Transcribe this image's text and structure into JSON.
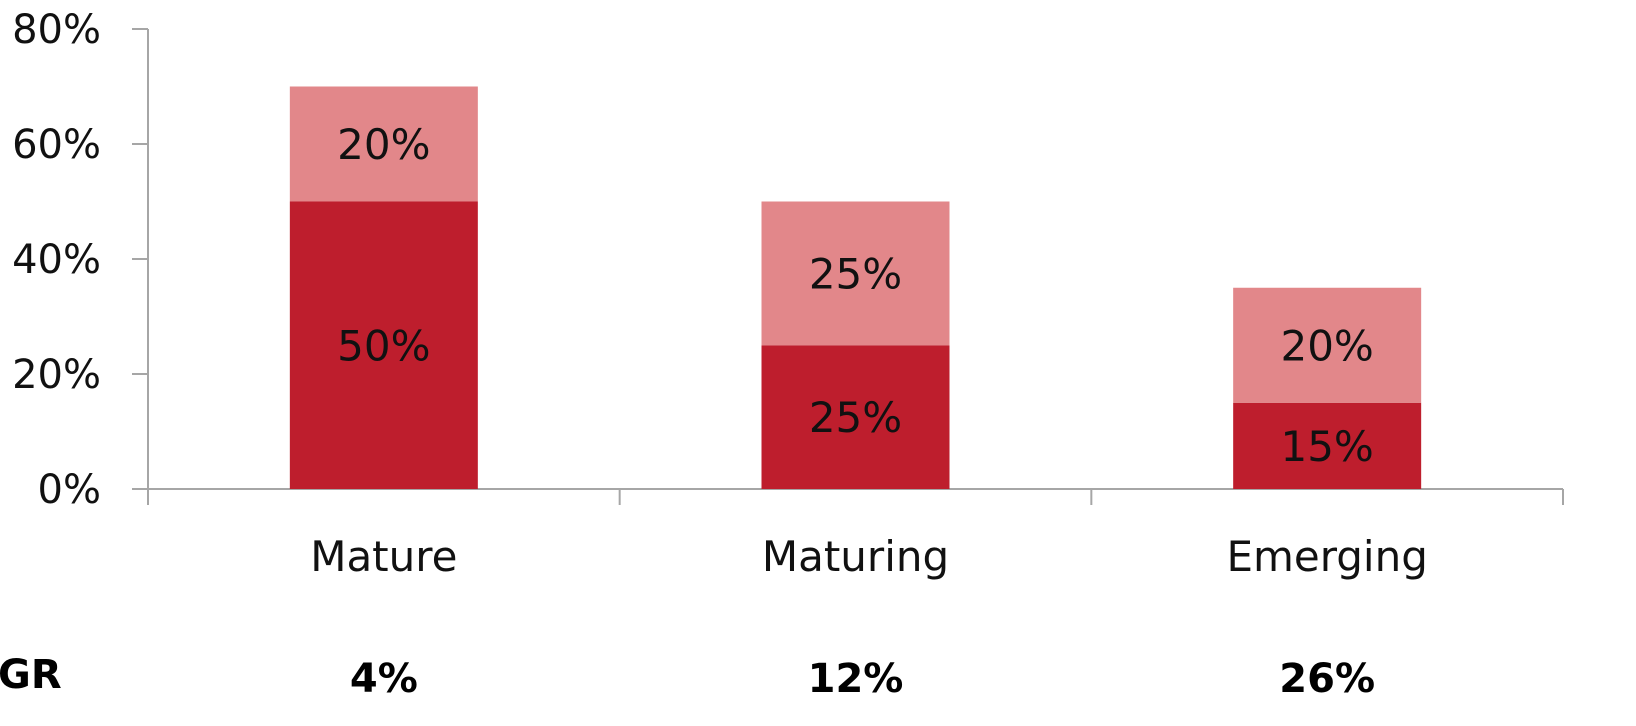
{
  "chart_data": {
    "type": "bar",
    "stacked": true,
    "categories": [
      "Mature",
      "Maturing",
      "Emerging"
    ],
    "series": [
      {
        "values": [
          50,
          25,
          15
        ],
        "labels": [
          "50%",
          "25%",
          "15%"
        ],
        "color": "#be1e2d"
      },
      {
        "values": [
          20,
          25,
          20
        ],
        "labels": [
          "20%",
          "25%",
          "20%"
        ],
        "color": "#e2878a"
      }
    ],
    "ylim": [
      0,
      80
    ],
    "yticks": [
      0,
      20,
      40,
      60,
      80
    ],
    "ytick_labels": [
      "0%",
      "20%",
      "40%",
      "60%",
      "80%"
    ],
    "grid": false,
    "axis_color": "#a6a6a6",
    "row_label": "GR",
    "row_values": [
      "4%",
      "12%",
      "26%"
    ]
  }
}
